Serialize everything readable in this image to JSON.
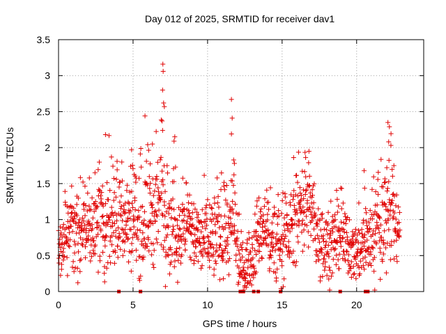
{
  "chart_data": {
    "type": "scatter",
    "title": "Day 012 of 2025, SRMTID for receiver dav1",
    "xlabel": "GPS time / hours",
    "ylabel": "SRMTID / TECUs",
    "xlim": [
      0,
      24.5
    ],
    "ylim": [
      0,
      3.5
    ],
    "grid": true,
    "legend": "none",
    "x_ticks": [
      0,
      5,
      10,
      15,
      20
    ],
    "x_tick_labels": [
      "0",
      "5",
      "10",
      "15",
      "20"
    ],
    "y_ticks": [
      0,
      0.5,
      1,
      1.5,
      2,
      2.5,
      3,
      3.5
    ],
    "y_tick_labels": [
      "0",
      "0.5",
      "1",
      "1.5",
      "2",
      "2.5",
      "3",
      "3.5"
    ],
    "marker": "+",
    "color": "#e00000",
    "x_range_of_points": [
      0,
      22.9
    ],
    "sample_count": 1500,
    "gap_markers_x": [
      4.05,
      5.5,
      12.2,
      12.4,
      13.1,
      13.4,
      14.9,
      18.9,
      20.6,
      20.75
    ],
    "envelope": {
      "x": [
        0,
        0.5,
        1,
        1.5,
        2,
        2.5,
        3,
        3.25,
        3.5,
        4,
        4.5,
        5,
        5.5,
        5.8,
        6,
        6.5,
        7,
        7.25,
        7.5,
        8,
        8.5,
        9,
        9.5,
        10,
        10.5,
        11,
        11.5,
        11.7,
        12,
        12.5,
        13,
        13.5,
        14,
        14.5,
        15,
        15.5,
        16,
        16.5,
        17,
        17.5,
        18,
        18.5,
        19,
        19.5,
        20,
        20.5,
        21,
        21.5,
        22,
        22.4,
        22.9
      ],
      "mean": [
        0.5,
        0.7,
        0.85,
        0.9,
        0.85,
        0.9,
        0.9,
        1.0,
        1.05,
        1.0,
        0.95,
        1.1,
        0.9,
        1.0,
        1.2,
        1.0,
        1.4,
        1.1,
        0.9,
        0.8,
        0.9,
        0.8,
        0.7,
        0.8,
        0.75,
        0.8,
        0.85,
        1.0,
        0.5,
        0.3,
        0.55,
        0.8,
        0.9,
        0.6,
        0.7,
        0.8,
        1.1,
        1.3,
        1.1,
        0.7,
        0.65,
        0.7,
        0.75,
        0.6,
        0.55,
        0.7,
        0.75,
        0.8,
        1.2,
        1.1,
        0.7
      ],
      "spread": [
        0.25,
        0.35,
        0.4,
        0.4,
        0.4,
        0.4,
        0.45,
        0.55,
        0.5,
        0.45,
        0.45,
        0.5,
        0.5,
        0.6,
        0.6,
        0.55,
        0.75,
        0.55,
        0.45,
        0.4,
        0.4,
        0.4,
        0.35,
        0.45,
        0.4,
        0.4,
        0.45,
        0.6,
        0.35,
        0.25,
        0.3,
        0.4,
        0.4,
        0.4,
        0.35,
        0.4,
        0.45,
        0.5,
        0.4,
        0.35,
        0.35,
        0.35,
        0.35,
        0.3,
        0.3,
        0.4,
        0.4,
        0.45,
        0.6,
        0.5,
        0.3
      ]
    },
    "peaks": [
      {
        "x": 3.15,
        "y": 2.18
      },
      {
        "x": 3.55,
        "y": 1.87
      },
      {
        "x": 4.9,
        "y": 1.97
      },
      {
        "x": 5.8,
        "y": 2.44
      },
      {
        "x": 6.3,
        "y": 2.05
      },
      {
        "x": 7.0,
        "y": 3.16
      },
      {
        "x": 7.02,
        "y": 3.06
      },
      {
        "x": 6.98,
        "y": 2.8
      },
      {
        "x": 7.05,
        "y": 2.62
      },
      {
        "x": 7.1,
        "y": 2.57
      },
      {
        "x": 6.95,
        "y": 2.37
      },
      {
        "x": 7.8,
        "y": 2.15
      },
      {
        "x": 7.75,
        "y": 2.09
      },
      {
        "x": 11.6,
        "y": 2.67
      },
      {
        "x": 11.65,
        "y": 2.41
      },
      {
        "x": 11.6,
        "y": 2.19
      },
      {
        "x": 11.8,
        "y": 1.78
      },
      {
        "x": 16.8,
        "y": 1.95
      },
      {
        "x": 20.5,
        "y": 1.68
      },
      {
        "x": 22.1,
        "y": 2.35
      },
      {
        "x": 22.2,
        "y": 2.29
      },
      {
        "x": 22.15,
        "y": 2.08
      },
      {
        "x": 22.3,
        "y": 2.03
      },
      {
        "x": 22.5,
        "y": 1.75
      }
    ]
  }
}
